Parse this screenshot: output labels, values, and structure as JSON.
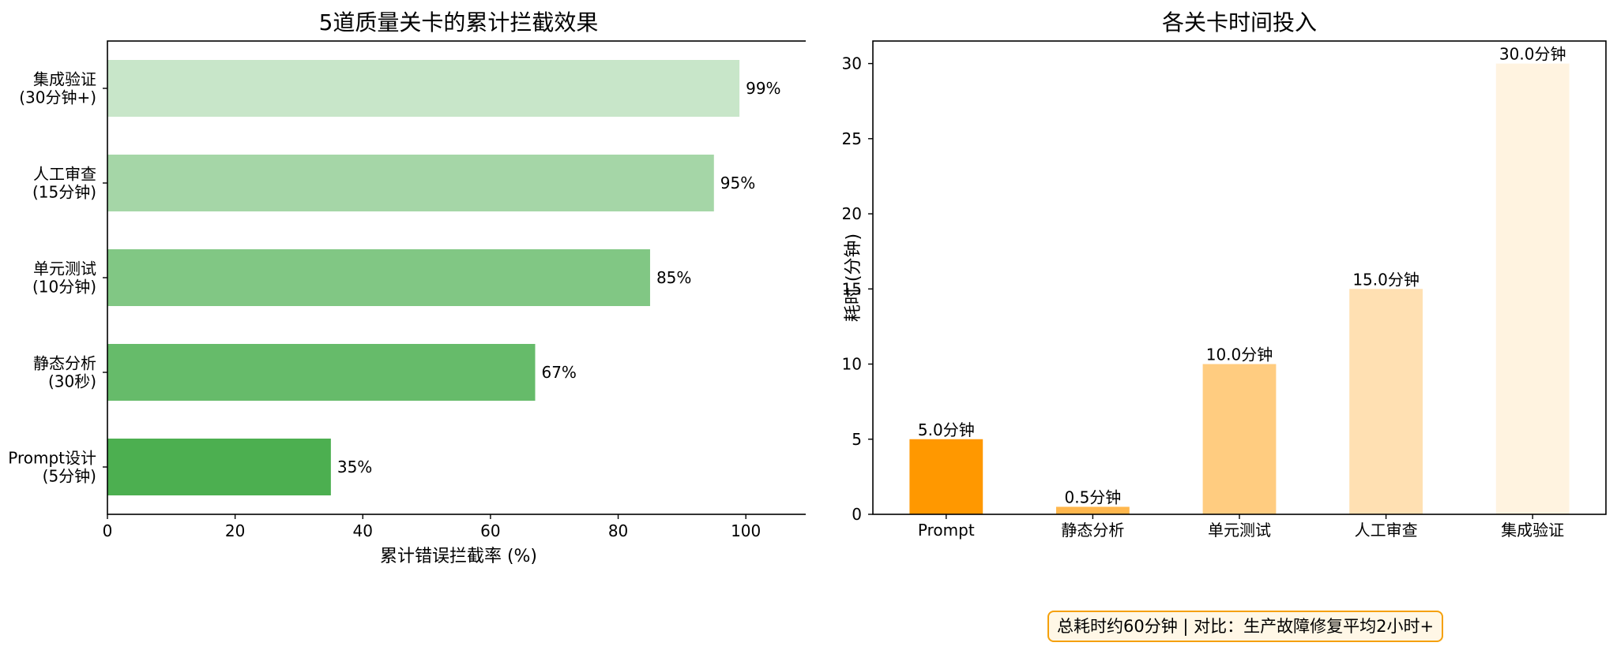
{
  "chart_data": [
    {
      "type": "bar",
      "orientation": "horizontal",
      "title": "5道质量关卡的累计拦截效果",
      "xlabel": "累计错误拦截率 (%)",
      "ylabel": "",
      "xlim": [
        0,
        110
      ],
      "xticks": [
        0,
        20,
        40,
        60,
        80,
        100
      ],
      "categories": [
        [
          "Prompt设计",
          "(5分钟)"
        ],
        [
          "静态分析",
          "(30秒)"
        ],
        [
          "单元测试",
          "(10分钟)"
        ],
        [
          "人工审查",
          "(15分钟)"
        ],
        [
          "集成验证",
          "(30分钟+)"
        ]
      ],
      "values": [
        35,
        67,
        85,
        95,
        99
      ],
      "value_labels": [
        "35%",
        "67%",
        "85%",
        "95%",
        "99%"
      ],
      "colors": [
        "#4caf50",
        "#66bb6a",
        "#81c784",
        "#a5d6a7",
        "#c8e6c9"
      ],
      "grid": false,
      "legend": "none"
    },
    {
      "type": "bar",
      "title": "各关卡时间投入",
      "xlabel": "",
      "ylabel": "耗时 (分钟)",
      "ylim": [
        0,
        31.5
      ],
      "yticks": [
        0,
        5,
        10,
        15,
        20,
        25,
        30
      ],
      "categories": [
        "Prompt",
        "静态分析",
        "单元测试",
        "人工审查",
        "集成验证"
      ],
      "values": [
        5.0,
        0.5,
        10.0,
        15.0,
        30.0
      ],
      "value_labels": [
        "5.0分钟",
        "0.5分钟",
        "10.0分钟",
        "15.0分钟",
        "30.0分钟"
      ],
      "colors": [
        "#ff9800",
        "#ffb74d",
        "#ffcc80",
        "#ffe0b2",
        "#fff3e0"
      ],
      "grid": false,
      "legend": "none"
    }
  ],
  "note": "总耗时约60分钟 | 对比：生产故障修复平均2小时+"
}
